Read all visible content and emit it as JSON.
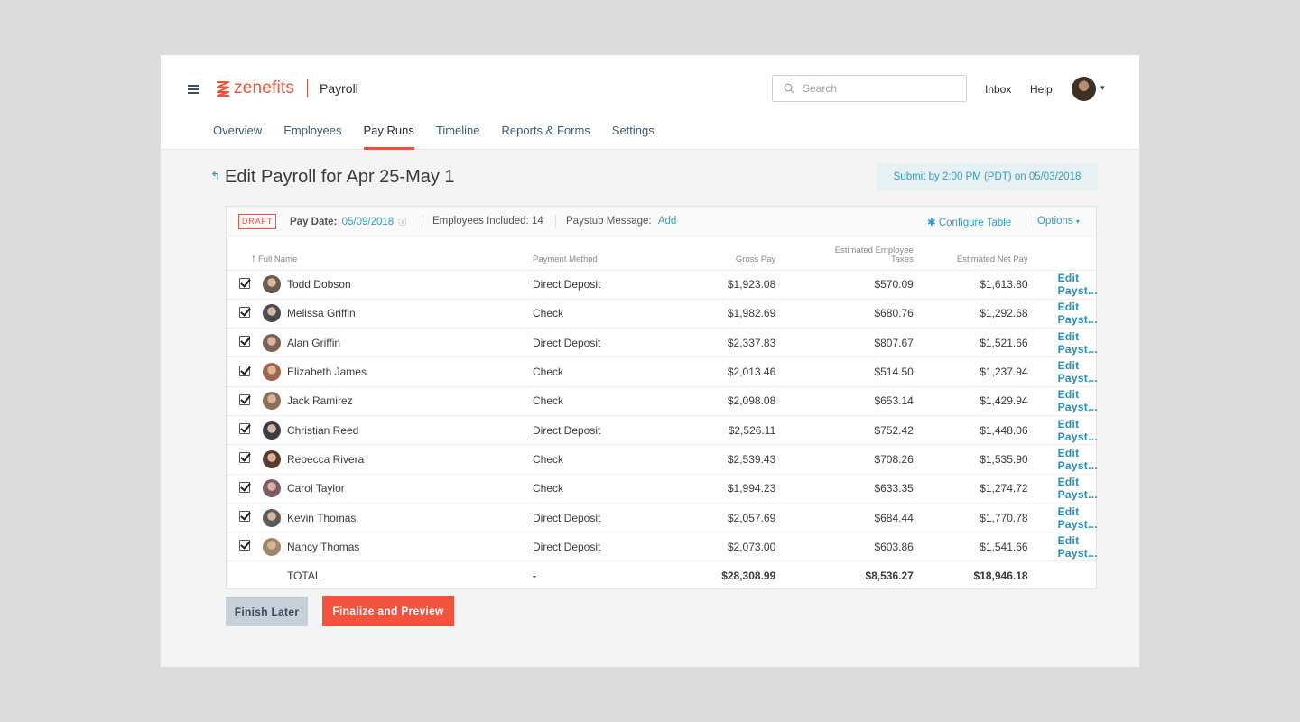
{
  "header": {
    "logo_text": "zenefits",
    "product": "Payroll",
    "search_placeholder": "Search",
    "inbox": "Inbox",
    "help": "Help"
  },
  "nav": {
    "tabs": [
      "Overview",
      "Employees",
      "Pay Runs",
      "Timeline",
      "Reports & Forms",
      "Settings"
    ],
    "active": "Pay Runs"
  },
  "page": {
    "back_icon": "↰",
    "title": "Edit Payroll for Apr 25-May 1",
    "deadline": "Submit by 2:00 PM (PDT) on 05/03/2018"
  },
  "summary": {
    "badge": "DRAFT",
    "pay_date_label": "Pay Date:",
    "pay_date": "05/09/2018",
    "employees_included": "Employees Included: 14",
    "paystub_label": "Paystub Message:",
    "paystub_add": "Add",
    "configure": "Configure Table",
    "options": "Options"
  },
  "table": {
    "columns": {
      "name": "Full Name",
      "method": "Payment Method",
      "gross": "Gross Pay",
      "tax_line1": "Estimated Employee",
      "tax_line2": "Taxes",
      "net": "Estimated Net Pay"
    },
    "rows": [
      {
        "name": "Todd Dobson",
        "method": "Direct Deposit",
        "gross": "$1,923.08",
        "tax": "$570.09",
        "net": "$1,613.80",
        "edit": "Edit Payst...",
        "avatar": "#6b5b4e"
      },
      {
        "name": "Melissa Griffin",
        "method": "Check",
        "gross": "$1,982.69",
        "tax": "$680.76",
        "net": "$1,292.68",
        "edit": "Edit Payst...",
        "avatar": "#4a4a55"
      },
      {
        "name": "Alan Griffin",
        "method": "Direct Deposit",
        "gross": "$2,337.83",
        "tax": "$807.67",
        "net": "$1,521.66",
        "edit": "Edit Payst...",
        "avatar": "#7a6356"
      },
      {
        "name": "Elizabeth James",
        "method": "Check",
        "gross": "$2,013.46",
        "tax": "$514.50",
        "net": "$1,237.94",
        "edit": "Edit Payst...",
        "avatar": "#a0644a"
      },
      {
        "name": "Jack Ramirez",
        "method": "Check",
        "gross": "$2,098.08",
        "tax": "$653.14",
        "net": "$1,429.94",
        "edit": "Edit Payst...",
        "avatar": "#8a6f5a"
      },
      {
        "name": "Christian Reed",
        "method": "Direct Deposit",
        "gross": "$2,526.11",
        "tax": "$752.42",
        "net": "$1,448.06",
        "edit": "Edit Payst...",
        "avatar": "#3c3c46"
      },
      {
        "name": "Rebecca Rivera",
        "method": "Check",
        "gross": "$2,539.43",
        "tax": "$708.26",
        "net": "$1,535.90",
        "edit": "Edit Payst...",
        "avatar": "#5a3a30"
      },
      {
        "name": "Carol Taylor",
        "method": "Check",
        "gross": "$1,994.23",
        "tax": "$633.35",
        "net": "$1,274.72",
        "edit": "Edit Payst...",
        "avatar": "#7a5a6a"
      },
      {
        "name": "Kevin Thomas",
        "method": "Direct Deposit",
        "gross": "$2,057.69",
        "tax": "$684.44",
        "net": "$1,770.78",
        "edit": "Edit Payst...",
        "avatar": "#5e5a56"
      },
      {
        "name": "Nancy Thomas",
        "method": "Direct Deposit",
        "gross": "$2,073.00",
        "tax": "$603.86",
        "net": "$1,541.66",
        "edit": "Edit Payst...",
        "avatar": "#9a8a6a"
      }
    ],
    "total": {
      "label": "TOTAL",
      "method": "-",
      "gross": "$28,308.99",
      "tax": "$8,536.27",
      "net": "$18,946.18"
    }
  },
  "actions": {
    "finish_later": "Finish Later",
    "finalize": "Finalize and Preview"
  },
  "colors": {
    "brand": "#f0503a",
    "link": "#1d90c4"
  }
}
